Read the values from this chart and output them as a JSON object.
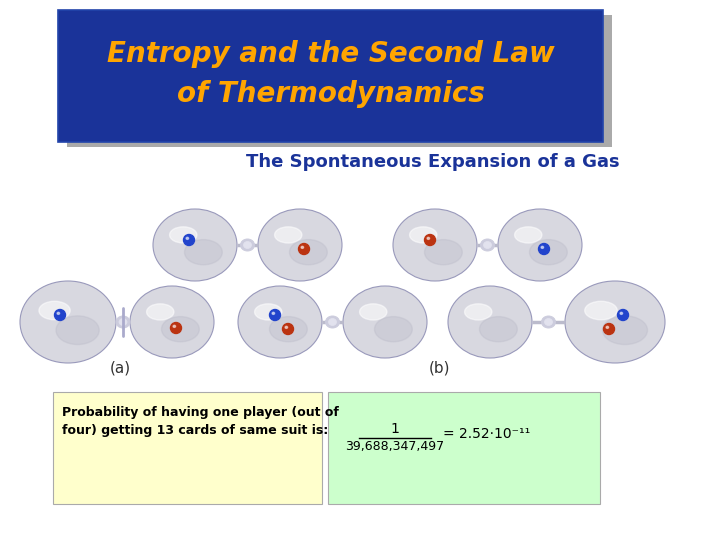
{
  "title_text": "Entropy and the Second Law\nof Thermodynamics",
  "title_bg_color": "#1a3399",
  "title_text_color": "#FFA500",
  "title_shadow_color": "#aaaaaa",
  "subtitle_text": "The Spontaneous Expansion of a Gas",
  "subtitle_color": "#1a3399",
  "bg_color": "#ffffff",
  "label_a": "(a)",
  "label_b": "(b)",
  "prob_box_text": "Probability of having one player (out of\nfour) getting 13 cards of same suit is:",
  "prob_box_bg": "#ffffcc",
  "formula_box_bg": "#ccffcc",
  "formula_numerator": "1",
  "formula_denominator": "39,688,347,497",
  "formula_result": "= 2.52·10⁻¹¹",
  "sphere_color_light": "#d8d8e0",
  "dot_blue": "#2244cc",
  "dot_red": "#bb3311"
}
